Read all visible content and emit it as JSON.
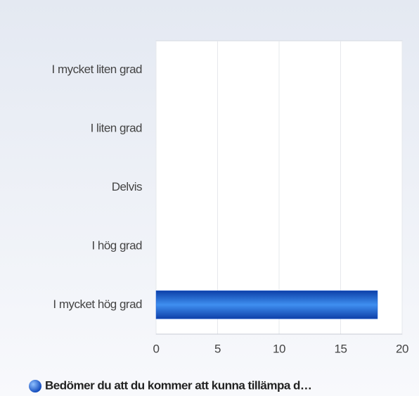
{
  "chart_data": {
    "type": "bar",
    "orientation": "horizontal",
    "categories": [
      "I mycket liten grad",
      "I liten grad",
      "Delvis",
      "I hög grad",
      "I mycket hög grad"
    ],
    "series": [
      {
        "name": "Bedömer du att du kommer att kunna tillämpa d…",
        "color": "#1f5fd6",
        "values": [
          0,
          0,
          0,
          0,
          18
        ]
      }
    ],
    "xlim": [
      0,
      20
    ],
    "xticks": [
      0,
      5,
      10,
      15,
      20
    ],
    "grid": true,
    "legend": "bottom"
  }
}
